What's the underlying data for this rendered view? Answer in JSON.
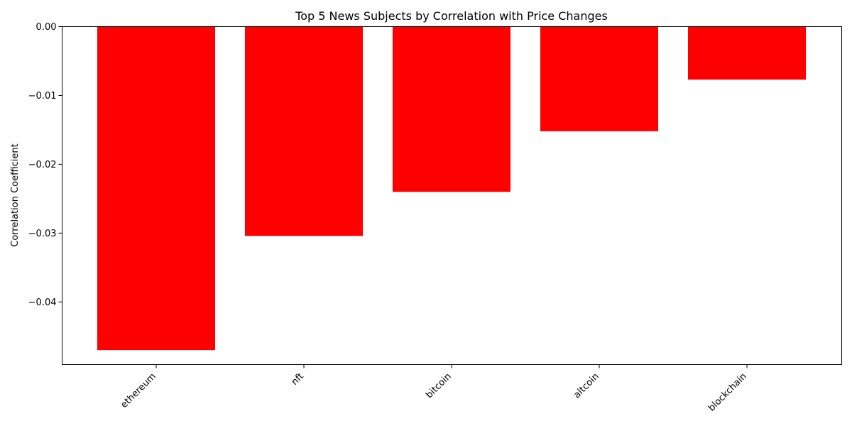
{
  "chart_data": {
    "type": "bar",
    "title": "Top 5 News Subjects by Correlation with Price Changes",
    "xlabel": "",
    "ylabel": "Correlation Coefficient",
    "categories": [
      "ethereum",
      "nft",
      "bitcoin",
      "altcoin",
      "blockchain"
    ],
    "values": [
      -0.047,
      -0.0304,
      -0.024,
      -0.0152,
      -0.0077
    ],
    "ylim": [
      -0.0491,
      0.0
    ],
    "yticks": [
      0.0,
      -0.01,
      -0.02,
      -0.03,
      -0.04
    ],
    "ytick_labels": [
      "0.00",
      "−0.01",
      "−0.02",
      "−0.03",
      "−0.04"
    ],
    "bar_color": "#ff0000",
    "grid": false,
    "legend": "none"
  }
}
